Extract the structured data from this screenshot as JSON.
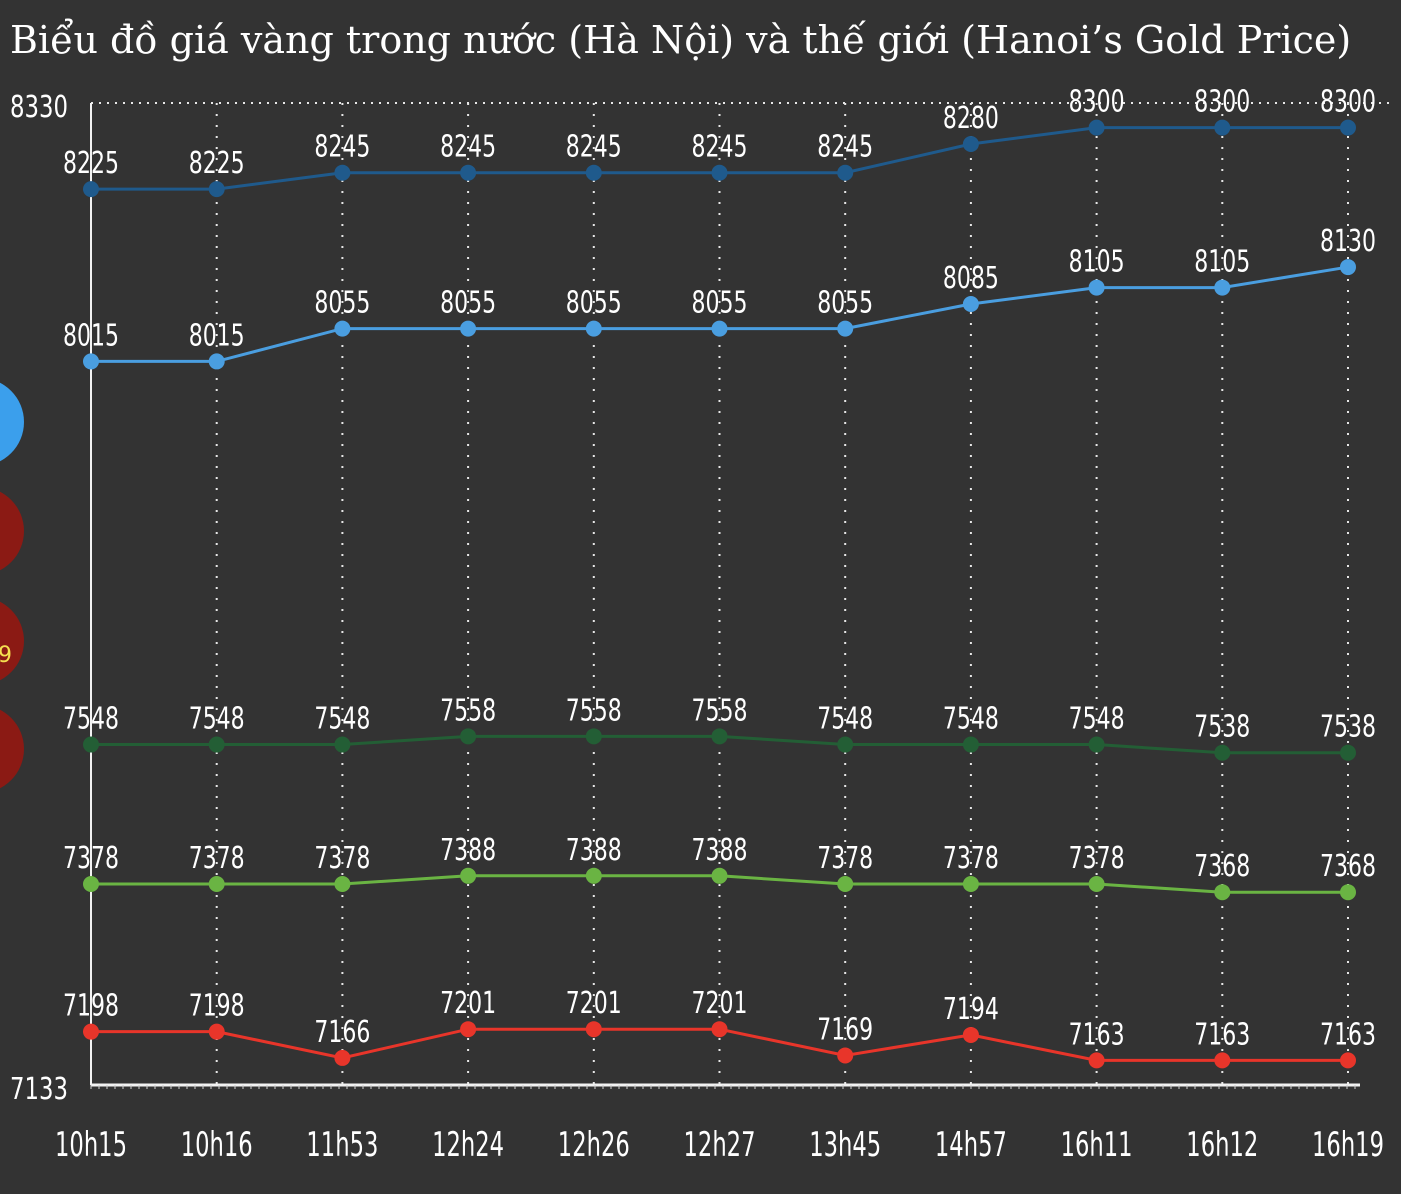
{
  "chart_data": {
    "type": "line",
    "title": "Biểu đồ giá vàng trong nước (Hà Nội) và thế giới (Hanoi’s Gold Price)",
    "xlabel": "",
    "ylabel": "",
    "categories": [
      "10h15",
      "10h16",
      "11h53",
      "12h24",
      "12h26",
      "12h27",
      "13h45",
      "14h57",
      "16h11",
      "16h12",
      "16h19"
    ],
    "ylim": [
      7133,
      8330
    ],
    "yticks": [
      7133,
      8330
    ],
    "grid": true,
    "series": [
      {
        "color": "#1f5a8c",
        "values": [
          8225,
          8225,
          8245,
          8245,
          8245,
          8245,
          8245,
          8280,
          8300,
          8300,
          8300
        ]
      },
      {
        "color": "#4a9ee0",
        "values": [
          8015,
          8015,
          8055,
          8055,
          8055,
          8055,
          8055,
          8085,
          8105,
          8105,
          8130
        ]
      },
      {
        "color": "#235e35",
        "values": [
          7548,
          7548,
          7548,
          7558,
          7558,
          7558,
          7548,
          7548,
          7548,
          7538,
          7538
        ]
      },
      {
        "color": "#6ab443",
        "values": [
          7378,
          7378,
          7378,
          7388,
          7388,
          7388,
          7378,
          7378,
          7378,
          7368,
          7368
        ]
      },
      {
        "color": "#e8352a",
        "values": [
          7198,
          7198,
          7166,
          7201,
          7201,
          7201,
          7169,
          7194,
          7163,
          7163,
          7163
        ]
      }
    ]
  },
  "side_legend": {
    "partial_label": "9",
    "colors": [
      "#3b9fec",
      "#8b1a14",
      "#8b1a14",
      "#8b1a14"
    ]
  }
}
